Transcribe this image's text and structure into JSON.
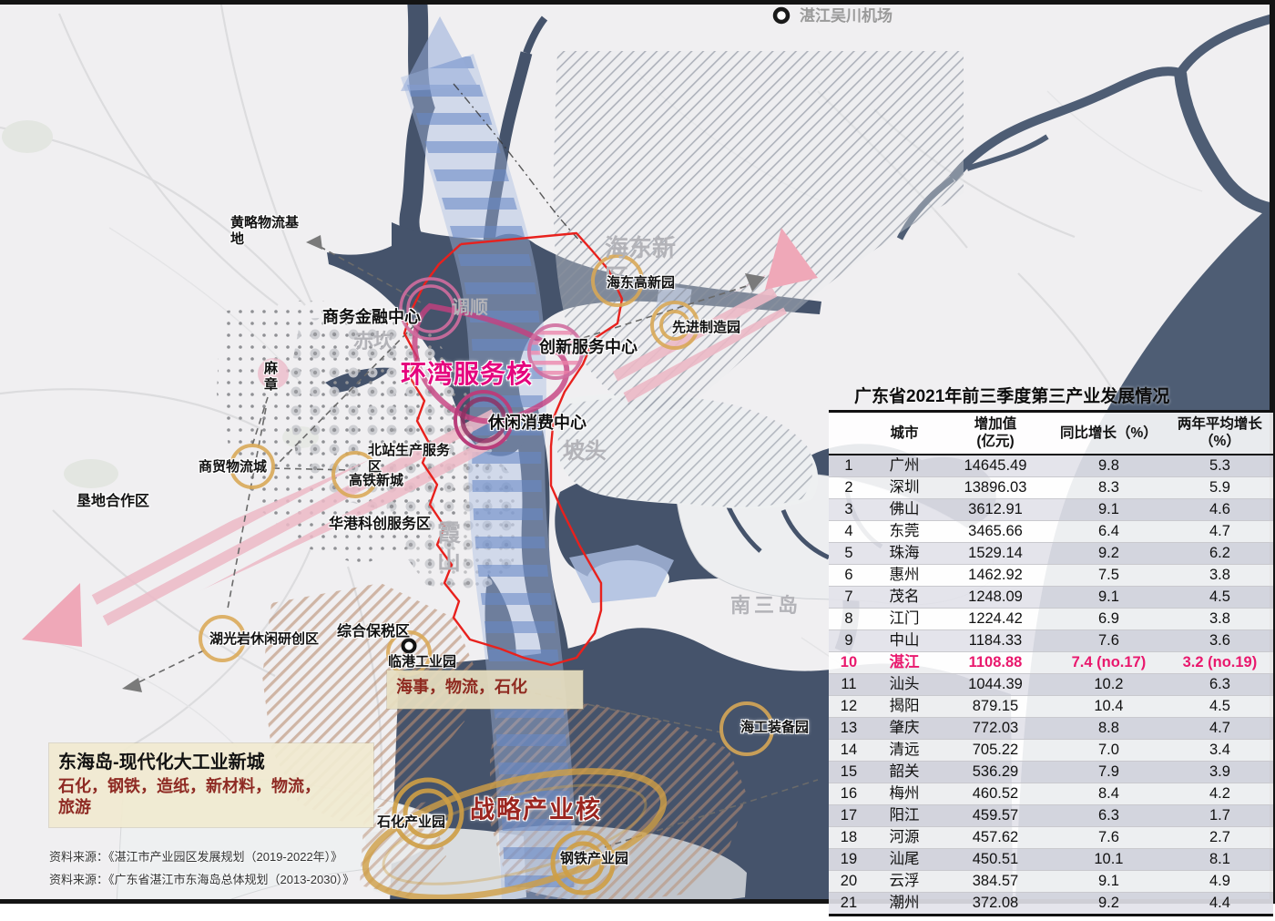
{
  "map": {
    "airport": "湛江吴川机场",
    "huanglue_logistics": "黄略物流基地",
    "business_finance_center": "商务金融中心",
    "chikan": "赤坎",
    "tiaoshun": "调顺",
    "bay_service_core": "环湾服务核",
    "innovation_service_center": "创新服务中心",
    "leisure_consumption_center": "休闲消费中心",
    "haidong_new_area": "海东新区",
    "haidong_hightech_park": "海东高新园",
    "advanced_manufacturing_park": "先进制造园",
    "potou": "坡头",
    "north_station_service": "北站生产服务区",
    "hsr_new_town": "高铁新城",
    "huagang_scitech_zone": "华港科创服务区",
    "xiashan": "霞山",
    "mazhang": "麻章",
    "trade_logistics_city": "商贸物流城",
    "kendi_cooperation_zone": "垦地合作区",
    "huguangyan_zone": "湖光岩休闲研创区",
    "bonded_zone": "综合保税区",
    "lingang_industrial_park": "临港工业园",
    "lingang_tags": "海事，物流，石化",
    "nansan_island": "南三岛",
    "marine_equipment_park": "海工装备园",
    "donghai_title": "东海岛-现代化大工业新城",
    "donghai_tags_line1": "石化，钢铁，造纸，新材料，物流，",
    "donghai_tags_line2": "旅游",
    "petrochemical_park": "石化产业园",
    "strategic_industry_core": "战略产业核",
    "steel_park": "钢铁产业园",
    "source_1": "资料来源：《湛江市产业园区发展规划（2019-2022年）》",
    "source_2": "资料来源：《广东省湛江市东海岛总体规划（2013-2030）》"
  },
  "table": {
    "title": "广东省2021年前三季度第三产业发展情况",
    "headers": {
      "rank": "",
      "city": "城市",
      "value": "增加值\n(亿元)",
      "yoy": "同比增长（%）",
      "avg": "两年平均增长\n（%）"
    },
    "highlight_rank": 10,
    "rows": [
      [
        1,
        "广州",
        "14645.49",
        "9.8",
        "5.3"
      ],
      [
        2,
        "深圳",
        "13896.03",
        "8.3",
        "5.9"
      ],
      [
        3,
        "佛山",
        "3612.91",
        "9.1",
        "4.6"
      ],
      [
        4,
        "东莞",
        "3465.66",
        "6.4",
        "4.7"
      ],
      [
        5,
        "珠海",
        "1529.14",
        "9.2",
        "6.2"
      ],
      [
        6,
        "惠州",
        "1462.92",
        "7.5",
        "3.8"
      ],
      [
        7,
        "茂名",
        "1248.09",
        "9.1",
        "4.5"
      ],
      [
        8,
        "江门",
        "1224.42",
        "6.9",
        "3.8"
      ],
      [
        9,
        "中山",
        "1184.33",
        "7.6",
        "3.6"
      ],
      [
        10,
        "湛江",
        "1108.88",
        "7.4 (no.17)",
        "3.2  (no.19)"
      ],
      [
        11,
        "汕头",
        "1044.39",
        "10.2",
        "6.3"
      ],
      [
        12,
        "揭阳",
        "879.15",
        "10.4",
        "4.5"
      ],
      [
        13,
        "肇庆",
        "772.03",
        "8.8",
        "4.7"
      ],
      [
        14,
        "清远",
        "705.22",
        "7.0",
        "3.4"
      ],
      [
        15,
        "韶关",
        "536.29",
        "7.9",
        "3.9"
      ],
      [
        16,
        "梅州",
        "460.52",
        "8.4",
        "4.2"
      ],
      [
        17,
        "阳江",
        "459.57",
        "6.3",
        "1.7"
      ],
      [
        18,
        "河源",
        "457.62",
        "7.6",
        "2.7"
      ],
      [
        19,
        "汕尾",
        "450.51",
        "10.1",
        "8.1"
      ],
      [
        20,
        "云浮",
        "384.57",
        "9.1",
        "4.9"
      ],
      [
        21,
        "潮州",
        "372.08",
        "9.2",
        "4.4"
      ]
    ]
  },
  "colors": {
    "highlight_pink": "#e9186d",
    "core_magenta": "#e5057e",
    "boundary_red": "#e8211d",
    "dark_red": "#9c2620",
    "park_circle_orange": "#d9a855",
    "water_navy": "#45536b",
    "sea_slate": "#4e5d74"
  }
}
